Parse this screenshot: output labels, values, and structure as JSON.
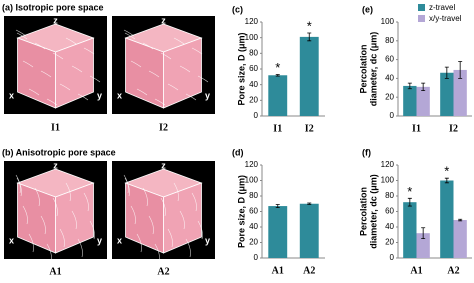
{
  "image_panels": [
    {
      "label": "(a) Isotropic pore space",
      "images": [
        "I1",
        "I2"
      ],
      "axes": [
        "z",
        "x",
        "y"
      ]
    },
    {
      "label": "(b) Anisotropic pore space",
      "images": [
        "A1",
        "A2"
      ],
      "axes": [
        "z",
        "x",
        "y"
      ]
    }
  ],
  "chart_data": [
    {
      "type": "bar",
      "panel_label": "(c)",
      "ylabel": [
        "Pore size, D (μm)"
      ],
      "categories": [
        "I1",
        "I2"
      ],
      "series": [
        {
          "color": "#2e8b9a",
          "values": [
            52,
            101
          ],
          "errors": [
            1,
            5
          ]
        }
      ],
      "annotations": [
        "*",
        "*"
      ],
      "ylim": [
        0,
        120
      ],
      "yticks": [
        0,
        20,
        40,
        60,
        80,
        100,
        120
      ]
    },
    {
      "type": "bar",
      "panel_label": "(e)",
      "ylabel": [
        "Percolation",
        "diameter, dc (μm)"
      ],
      "categories": [
        "I1",
        "I2"
      ],
      "series": [
        {
          "name": "z-travel",
          "color": "#2e8b9a",
          "values": [
            32,
            46
          ],
          "errors": [
            3,
            6
          ]
        },
        {
          "name": "x/y-travel",
          "color": "#b4a7d6",
          "values": [
            31,
            49
          ],
          "errors": [
            4,
            9
          ]
        }
      ],
      "annotations": [],
      "legend": "top-right",
      "ylim": [
        0,
        100
      ],
      "yticks": [
        0,
        20,
        40,
        60,
        80,
        100
      ]
    },
    {
      "type": "bar",
      "panel_label": "(d)",
      "ylabel": [
        "Pore size, D (μm)"
      ],
      "categories": [
        "A1",
        "A2"
      ],
      "series": [
        {
          "color": "#2e8b9a",
          "values": [
            67,
            70
          ],
          "errors": [
            2,
            1
          ]
        }
      ],
      "annotations": [],
      "ylim": [
        0,
        120
      ],
      "yticks": [
        0,
        20,
        40,
        60,
        80,
        100,
        120
      ]
    },
    {
      "type": "bar",
      "panel_label": "(f)",
      "ylabel": [
        "Percolation",
        "diameter, dc (μm)"
      ],
      "categories": [
        "A1",
        "A2"
      ],
      "series": [
        {
          "color": "#2e8b9a",
          "values": [
            72,
            100
          ],
          "errors": [
            5,
            3
          ]
        },
        {
          "color": "#b4a7d6",
          "values": [
            32,
            49
          ],
          "errors": [
            7,
            1
          ]
        }
      ],
      "annotations": [
        "*",
        "*"
      ],
      "ylim": [
        0,
        120
      ],
      "yticks": [
        0,
        20,
        40,
        60,
        80,
        100,
        120
      ]
    }
  ]
}
